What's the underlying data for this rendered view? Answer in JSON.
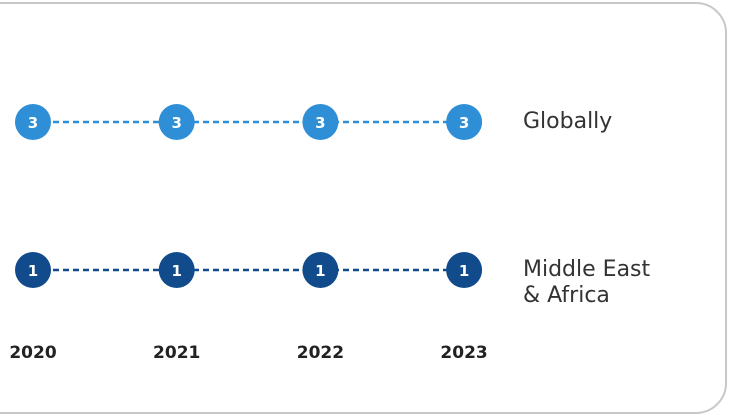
{
  "chart_data": {
    "type": "rank",
    "categories": [
      "2020",
      "2021",
      "2022",
      "2023"
    ],
    "series": [
      {
        "name": "Globally",
        "color": "#2e8fd6",
        "values": [
          3,
          3,
          3,
          3
        ]
      },
      {
        "name": "Middle East & Africa",
        "color": "#114b8c",
        "values": [
          1,
          1,
          1,
          1
        ]
      }
    ]
  }
}
